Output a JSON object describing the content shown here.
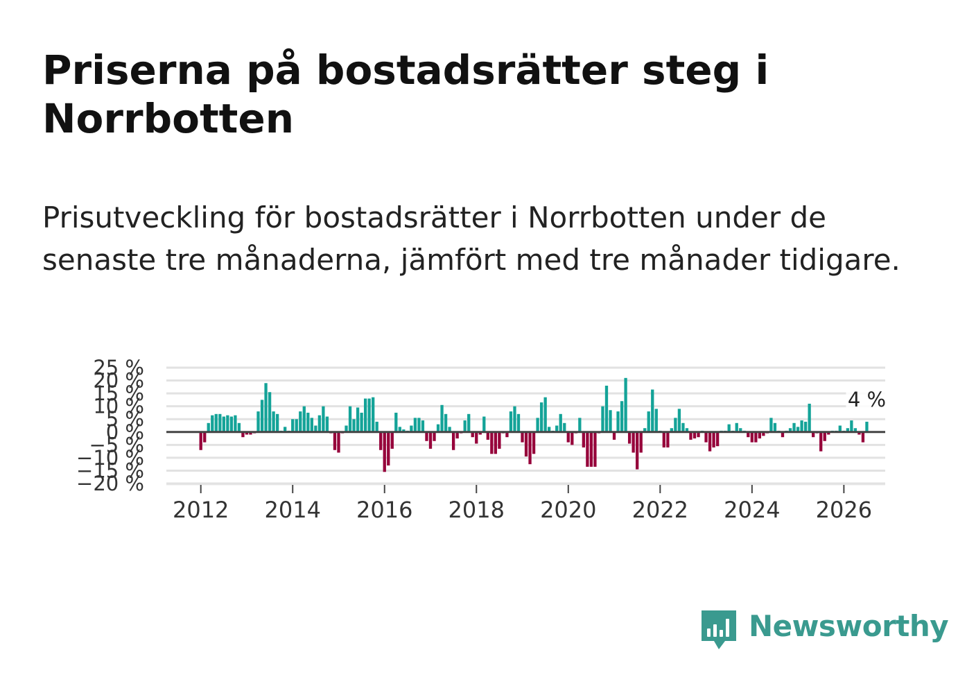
{
  "title": "Priserna på bostadsrätter steg i Norrbotten",
  "subtitle": "Prisutveckling för bostadsrätter i Norrbotten under de senaste tre månaderna, jämfört med tre månader tidigare.",
  "brand": {
    "name": "Newsworthy",
    "icon": "newsworthy-logo-icon",
    "color": "#3a9a8f"
  },
  "colors": {
    "positive": "#14a398",
    "negative": "#96003a",
    "grid": "#e2e2e2",
    "zero": "#444444",
    "text": "#333333"
  },
  "chart_data": {
    "type": "bar",
    "title": "",
    "xlabel": "",
    "ylabel": "",
    "ylim": [
      -20,
      25
    ],
    "xlim": [
      2011.25,
      2026.9
    ],
    "grid": true,
    "start": 2012.0,
    "step": 0.08333,
    "yticks": [
      25,
      20,
      15,
      10,
      5,
      0,
      -5,
      -10,
      -15,
      -20
    ],
    "ytick_labels": [
      "25 %",
      "20 %",
      "15 %",
      "10 %",
      "5 %",
      "0 %",
      "−5 %",
      "−10 %",
      "−15 %",
      "−20 %"
    ],
    "xticks": [
      2012,
      2014,
      2016,
      2018,
      2020,
      2022,
      2024,
      2026
    ],
    "xtick_labels": [
      "2012",
      "2014",
      "2016",
      "2018",
      "2020",
      "2022",
      "2024",
      "2026"
    ],
    "last_value_label": "4 %",
    "values": [
      -7,
      -4,
      3.5,
      6.5,
      7,
      7,
      6,
      6.5,
      6,
      6.5,
      3.5,
      -2,
      -1,
      -1,
      -0.5,
      8,
      12.5,
      19,
      15.5,
      8,
      7,
      0.5,
      2,
      0.5,
      5,
      5,
      8,
      10,
      7.5,
      5.5,
      2.5,
      6.5,
      10,
      6,
      -0.5,
      -7,
      -8,
      -0.5,
      2.5,
      10,
      5,
      9.5,
      7.5,
      13,
      13,
      13.5,
      4,
      -7,
      -15.5,
      -13,
      -6.5,
      7.5,
      2,
      1,
      0.5,
      2.5,
      5.5,
      5.5,
      4.5,
      -3.5,
      -6.5,
      -3.5,
      3,
      10.5,
      7,
      2,
      -7,
      -2.5,
      -0.5,
      4.5,
      7,
      -2,
      -4.5,
      -1,
      6,
      -3,
      -8.5,
      -8.5,
      -6.5,
      -0.5,
      -2,
      8,
      10,
      7,
      -4,
      -9.5,
      -12.5,
      -8.5,
      5.5,
      11.5,
      13.5,
      2,
      0.5,
      2.5,
      7,
      3.5,
      -4,
      -5,
      -0.5,
      5.5,
      -6,
      -13.5,
      -13.5,
      -13.5,
      -0.5,
      10,
      18,
      8.5,
      -3,
      8,
      12,
      21,
      -4.5,
      -8,
      -14.5,
      -8,
      1.5,
      8,
      16.5,
      9,
      0.5,
      -6,
      -6,
      1.5,
      5.5,
      9,
      3.5,
      1.5,
      -3,
      -2.5,
      -2,
      0.5,
      -4,
      -7.5,
      -6,
      -5.5,
      0.5,
      0.5,
      3,
      0.5,
      3.5,
      1.5,
      0.5,
      -2,
      -4,
      -4,
      -2.5,
      -1.5,
      -0.5,
      5.5,
      3.5,
      0.5,
      -2,
      0.5,
      1.5,
      3.5,
      2,
      4.5,
      4,
      11,
      -2,
      -0.5,
      -7.5,
      -3.5,
      -1,
      0.5,
      0.5,
      2.5,
      0.5,
      1.5,
      4.5,
      1.5,
      -1,
      -4,
      4
    ]
  }
}
